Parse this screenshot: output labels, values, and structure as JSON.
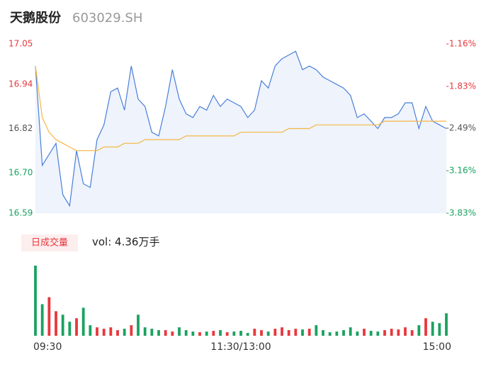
{
  "chart_data": [
    {
      "type": "line",
      "title": "天鹅股份",
      "subtitle": "603029.SH",
      "x": [
        0,
        4,
        8,
        12,
        16,
        20,
        24,
        28,
        32,
        36,
        40,
        44,
        48,
        52,
        56,
        60,
        64,
        68,
        72,
        76,
        80,
        84,
        88,
        92,
        96,
        100,
        104,
        108,
        112,
        116,
        120,
        124,
        128,
        132,
        136,
        140,
        144,
        148,
        152,
        156,
        160,
        164,
        168,
        172,
        176,
        180,
        184,
        188,
        192,
        196,
        200,
        204,
        208,
        212,
        216,
        220,
        224,
        228,
        232,
        236,
        240
      ],
      "xlim": [
        0,
        240
      ],
      "series": [
        {
          "color": "#4a7fd9",
          "values": [
            16.99,
            16.72,
            16.75,
            16.78,
            16.64,
            16.61,
            16.76,
            16.67,
            16.66,
            16.79,
            16.83,
            16.92,
            16.93,
            16.87,
            16.99,
            16.9,
            16.88,
            16.81,
            16.8,
            16.88,
            16.98,
            16.9,
            16.86,
            16.85,
            16.88,
            16.87,
            16.91,
            16.88,
            16.9,
            16.89,
            16.88,
            16.85,
            16.87,
            16.95,
            16.93,
            16.99,
            17.01,
            17.02,
            17.03,
            16.98,
            16.99,
            16.98,
            16.96,
            16.95,
            16.94,
            16.93,
            16.91,
            16.85,
            16.86,
            16.84,
            16.82,
            16.85,
            16.85,
            16.86,
            16.89,
            16.89,
            16.82,
            16.88,
            16.84,
            16.83,
            16.82
          ]
        },
        {
          "color": "#f5b642",
          "values": [
            16.99,
            16.85,
            16.81,
            16.79,
            16.78,
            16.77,
            16.76,
            16.76,
            16.76,
            16.76,
            16.77,
            16.77,
            16.77,
            16.78,
            16.78,
            16.78,
            16.79,
            16.79,
            16.79,
            16.79,
            16.79,
            16.79,
            16.8,
            16.8,
            16.8,
            16.8,
            16.8,
            16.8,
            16.8,
            16.8,
            16.81,
            16.81,
            16.81,
            16.81,
            16.81,
            16.81,
            16.81,
            16.82,
            16.82,
            16.82,
            16.82,
            16.83,
            16.83,
            16.83,
            16.83,
            16.83,
            16.83,
            16.83,
            16.83,
            16.83,
            16.83,
            16.84,
            16.84,
            16.84,
            16.84,
            16.84,
            16.84,
            16.84,
            16.84,
            16.84,
            16.84
          ]
        }
      ],
      "ylim": [
        16.59,
        17.05
      ],
      "yticks": [
        17.05,
        16.94,
        16.82,
        {
          "value": 16.7,
          "label": "16.70"
        },
        16.59
      ],
      "y2lim": [
        -3.83,
        -1.16
      ],
      "y2ticks": [
        {
          "value": -1.16,
          "label": "-1.16%"
        },
        {
          "value": -1.83,
          "label": "-1.83%"
        },
        {
          "value": -2.49,
          "label": "-2.49%"
        },
        {
          "value": -3.16,
          "label": "-3.16%"
        },
        {
          "value": -3.83,
          "label": "-3.83%"
        }
      ]
    },
    {
      "type": "bar",
      "label": "日成交量",
      "annotation": "vol: 4.36万手",
      "x": [
        0,
        4,
        8,
        12,
        16,
        20,
        24,
        28,
        32,
        36,
        40,
        44,
        48,
        52,
        56,
        60,
        64,
        68,
        72,
        76,
        80,
        84,
        88,
        92,
        96,
        100,
        104,
        108,
        112,
        116,
        120,
        124,
        128,
        132,
        136,
        140,
        144,
        148,
        152,
        156,
        160,
        164,
        168,
        172,
        176,
        180,
        184,
        188,
        192,
        196,
        200,
        204,
        208,
        212,
        216,
        220,
        224,
        228,
        232,
        236,
        240
      ],
      "values": [
        100,
        45,
        55,
        35,
        30,
        20,
        25,
        40,
        15,
        12,
        10,
        12,
        8,
        10,
        15,
        30,
        12,
        10,
        8,
        8,
        6,
        12,
        8,
        6,
        5,
        6,
        7,
        8,
        5,
        6,
        7,
        4,
        10,
        8,
        6,
        10,
        12,
        8,
        10,
        9,
        10,
        15,
        8,
        5,
        6,
        8,
        12,
        6,
        10,
        7,
        6,
        8,
        10,
        9,
        12,
        8,
        15,
        25,
        20,
        18,
        32
      ],
      "up_color": "#e8383d",
      "down_color": "#1aa260",
      "xlim": [
        0,
        240
      ],
      "ylim": [
        0,
        100
      ],
      "xticks": [
        {
          "value": 0,
          "label": "09:30"
        },
        {
          "value": 120,
          "label": "11:30/13:00"
        },
        {
          "value": 240,
          "label": "15:00"
        }
      ]
    }
  ]
}
